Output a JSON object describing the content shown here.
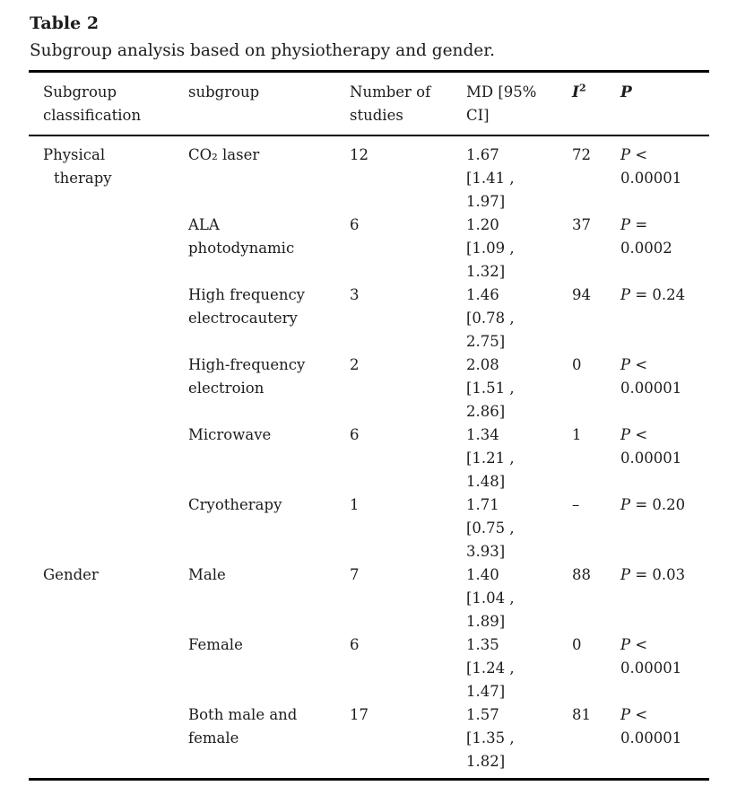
{
  "page": {
    "title": "Table 2",
    "caption": "Subgroup analysis based on physiotherapy and gender."
  },
  "table": {
    "columns": [
      {
        "id": "classification",
        "lines": [
          "Subgroup",
          "classification"
        ],
        "emphasis": false
      },
      {
        "id": "subgroup",
        "lines": [
          "subgroup"
        ],
        "emphasis": false
      },
      {
        "id": "n_studies",
        "lines": [
          "Number of",
          "studies"
        ],
        "emphasis": false
      },
      {
        "id": "md_ci",
        "lines": [
          "MD [95%",
          "CI]"
        ],
        "emphasis": false
      },
      {
        "id": "i_squared",
        "lines": [
          "I"
        ],
        "sup": "2",
        "emphasis": true
      },
      {
        "id": "p_value",
        "lines": [
          "P"
        ],
        "emphasis": true
      }
    ],
    "rows": [
      {
        "classification": [
          "Physical",
          "therapy"
        ],
        "subgroup": [
          "CO₂ laser"
        ],
        "n": "12",
        "md": [
          "1.67",
          "[1.41 ,",
          "1.97]"
        ],
        "i2": "72",
        "p": [
          "P <",
          "0.00001"
        ]
      },
      {
        "classification": [],
        "subgroup": [
          "ALA",
          "photodynamic"
        ],
        "n": "6",
        "md": [
          "1.20",
          "[1.09 ,",
          "1.32]"
        ],
        "i2": "37",
        "p": [
          "P =",
          "0.0002"
        ]
      },
      {
        "classification": [],
        "subgroup": [
          "High frequency",
          "electrocautery"
        ],
        "n": "3",
        "md": [
          "1.46",
          "[0.78 ,",
          "2.75]"
        ],
        "i2": "94",
        "p": [
          "P = 0.24"
        ]
      },
      {
        "classification": [],
        "subgroup": [
          "High-frequency",
          "electroion"
        ],
        "n": "2",
        "md": [
          "2.08",
          "[1.51 ,",
          "2.86]"
        ],
        "i2": "0",
        "p": [
          "P <",
          "0.00001"
        ]
      },
      {
        "classification": [],
        "subgroup": [
          "Microwave"
        ],
        "n": "6",
        "md": [
          "1.34",
          "[1.21 ,",
          "1.48]"
        ],
        "i2": "1",
        "p": [
          "P <",
          "0.00001"
        ]
      },
      {
        "classification": [],
        "subgroup": [
          "Cryotherapy"
        ],
        "n": "1",
        "md": [
          "1.71",
          "[0.75 ,",
          "3.93]"
        ],
        "i2": "–",
        "p": [
          "P = 0.20"
        ]
      },
      {
        "classification": [
          "Gender"
        ],
        "subgroup": [
          "Male"
        ],
        "n": "7",
        "md": [
          "1.40",
          "[1.04 ,",
          "1.89]"
        ],
        "i2": "88",
        "p": [
          "P = 0.03"
        ]
      },
      {
        "classification": [],
        "subgroup": [
          "Female"
        ],
        "n": "6",
        "md": [
          "1.35",
          "[1.24 ,",
          "1.47]"
        ],
        "i2": "0",
        "p": [
          "P <",
          "0.00001"
        ]
      },
      {
        "classification": [],
        "subgroup": [
          "Both male and",
          "female"
        ],
        "n": "17",
        "md": [
          "1.57",
          "[1.35 ,",
          "1.82]"
        ],
        "i2": "81",
        "p": [
          "P <",
          "0.00001"
        ]
      }
    ]
  },
  "colors": {
    "text": "#1c1c1c",
    "rule": "#000000",
    "background": "#ffffff"
  }
}
